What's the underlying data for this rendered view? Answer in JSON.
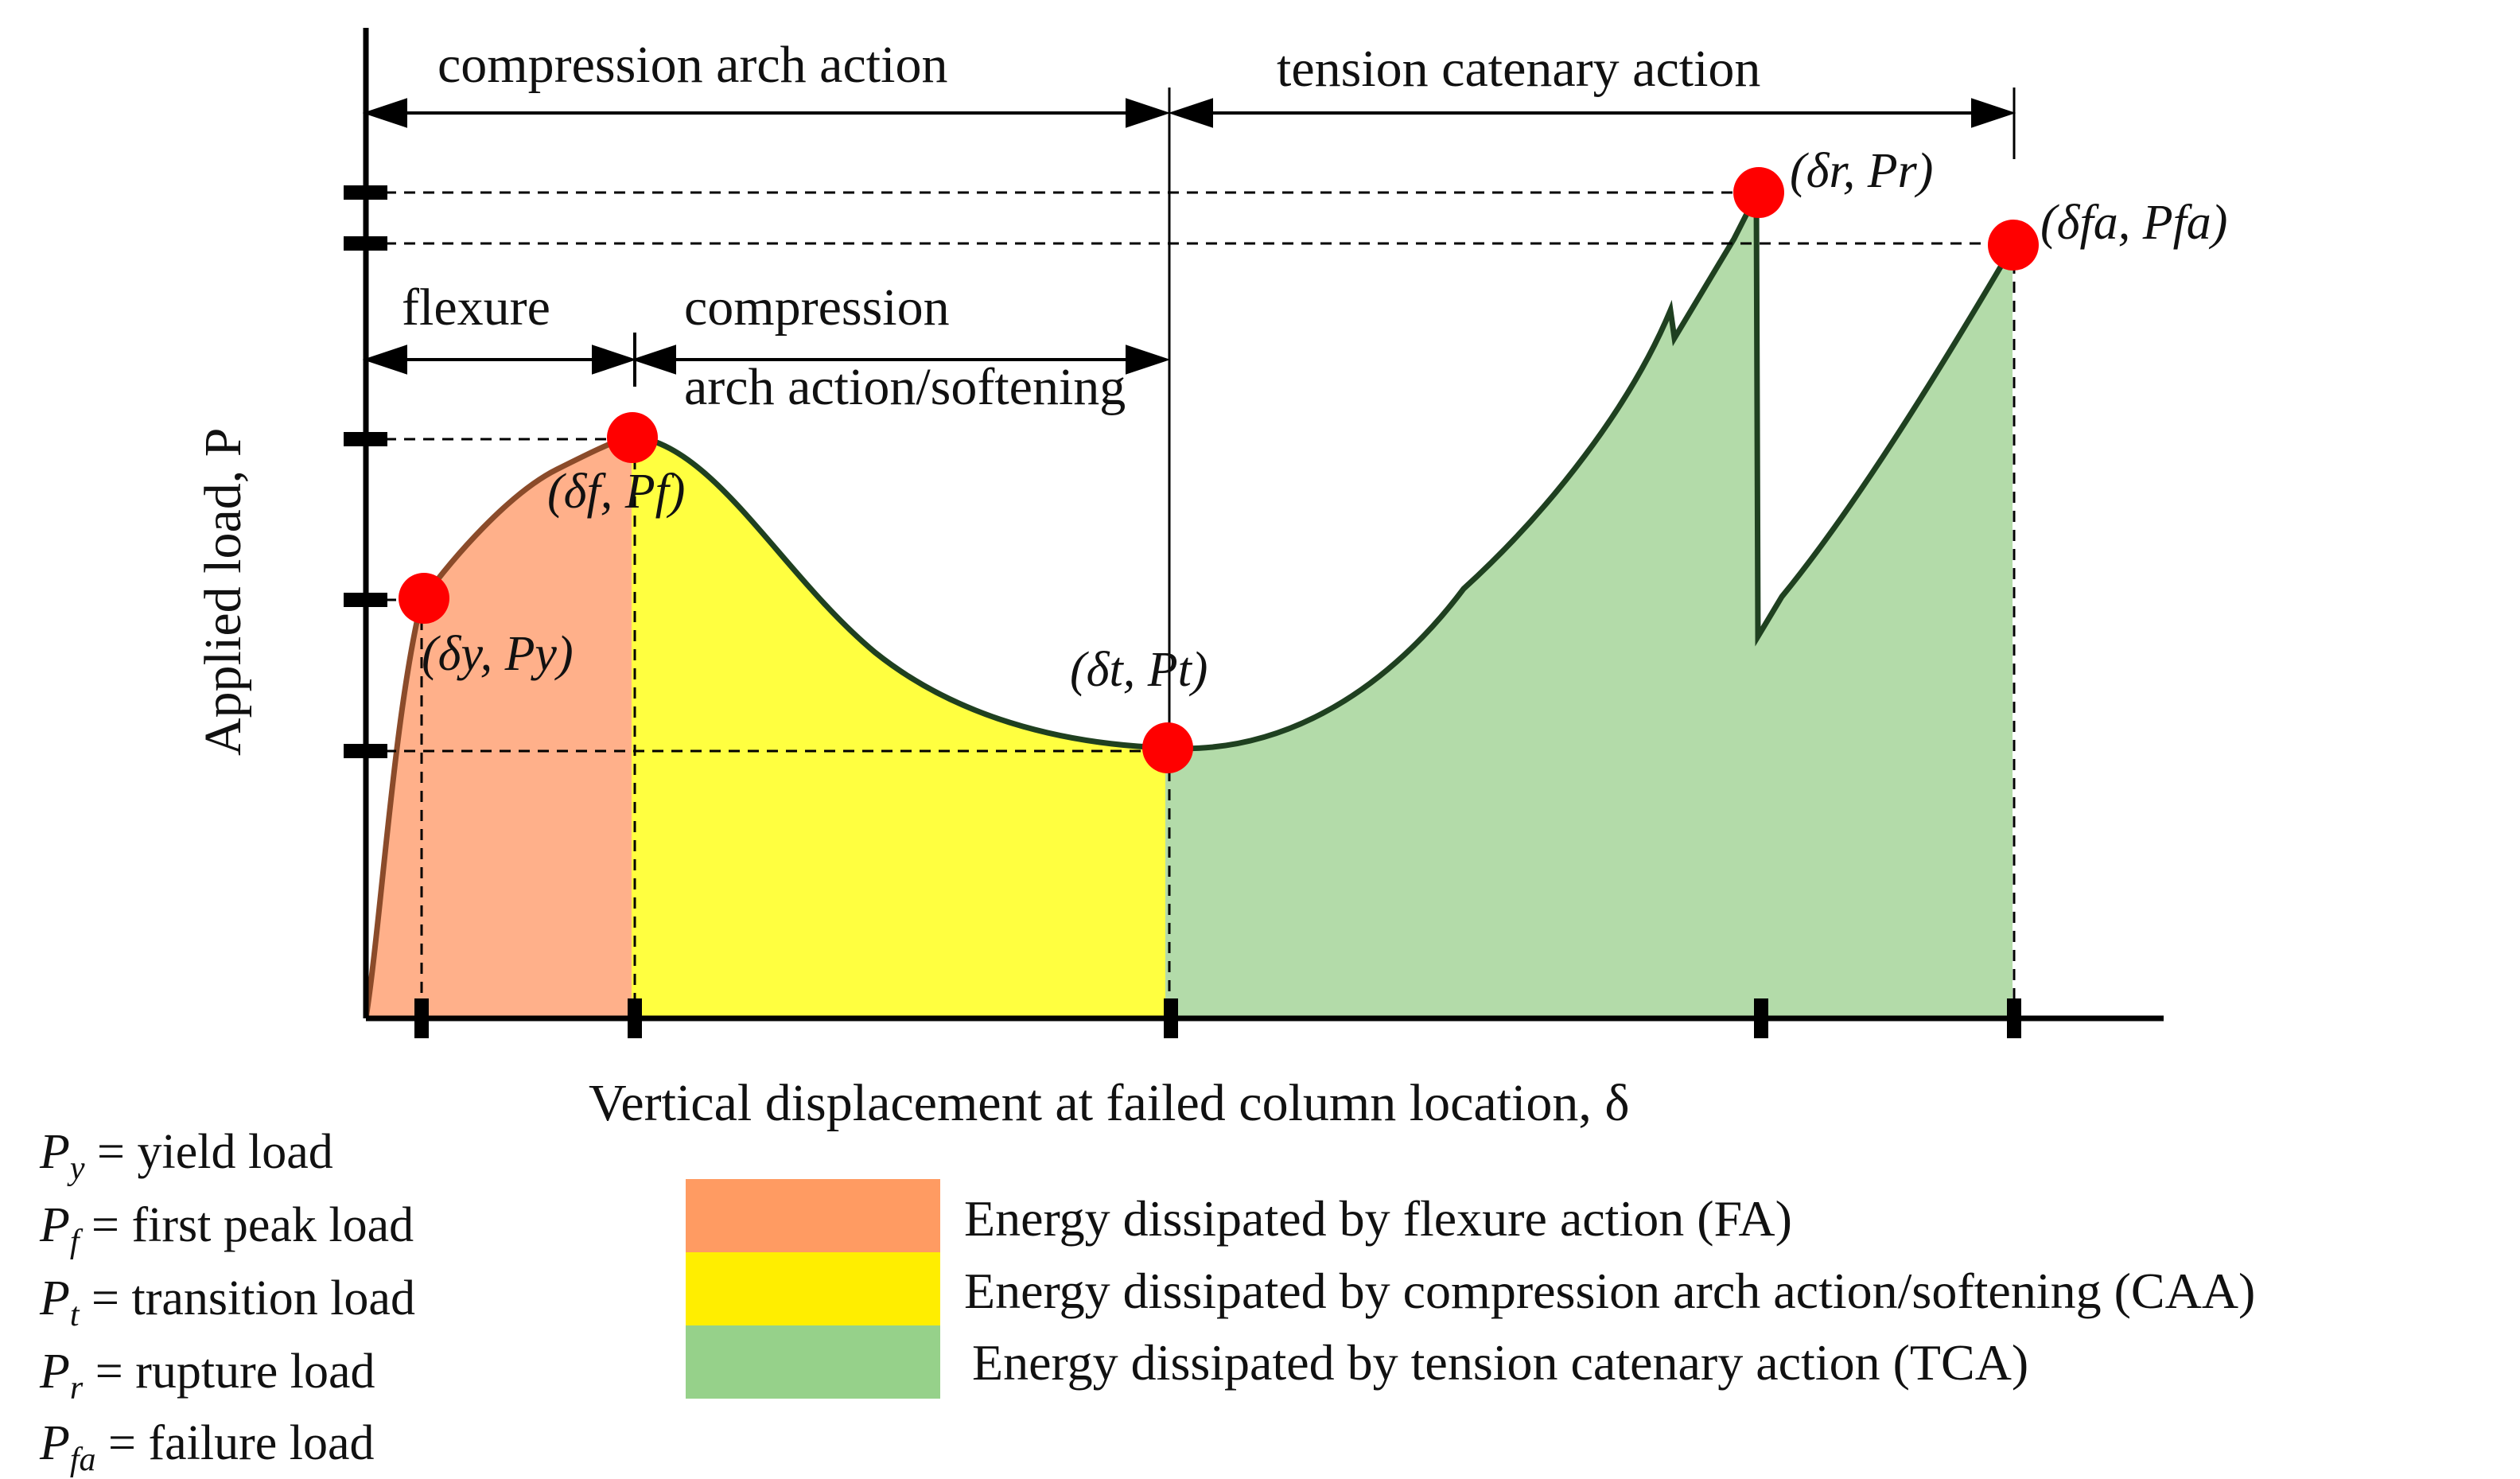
{
  "figure": {
    "y_axis_title": "Applied load, P",
    "x_axis_title": "Vertical displacement at failed column location, δ",
    "phases_top": [
      {
        "label": "compression arch action"
      },
      {
        "label": "tension catenary action"
      }
    ],
    "phases_lower": [
      {
        "label": "flexure"
      },
      {
        "label_line1": "compression",
        "label_line2": "arch action/softening"
      }
    ],
    "points": [
      {
        "id": "yield",
        "label": "(δy, Py)"
      },
      {
        "id": "first_peak",
        "label": "(δf, Pf)"
      },
      {
        "id": "transition",
        "label": "(δt, Pt)"
      },
      {
        "id": "rupture",
        "label": "(δr, Pr)"
      },
      {
        "id": "failure",
        "label": "(δfa, Pfa)"
      }
    ],
    "colors": {
      "flexure": "#FFB08A",
      "caa": "#FFFF40",
      "tca": "#B3DBA9",
      "point": "#FF0000",
      "curve": "#1F4020",
      "curve_flexure": "#8B4B2A"
    }
  },
  "definitions": [
    {
      "symbol": "Py",
      "sym_main": "P",
      "sym_sub": "y",
      "text": " = yield load"
    },
    {
      "symbol": "Pf",
      "sym_main": "P",
      "sym_sub": "f",
      "text": " = first peak load"
    },
    {
      "symbol": "Pt",
      "sym_main": "P",
      "sym_sub": "t",
      "text": " = transition load"
    },
    {
      "symbol": "Pr",
      "sym_main": "P",
      "sym_sub": "r",
      "text": " = rupture load"
    },
    {
      "symbol": "Pfa",
      "sym_main": "P",
      "sym_sub": "fa",
      "text": " = failure load"
    }
  ],
  "legend": [
    {
      "color": "#FF9B62",
      "text": "Energy dissipated by flexure action (FA)"
    },
    {
      "color": "#FFEE00",
      "text": "Energy dissipated by compression arch action/softening (CAA)"
    },
    {
      "color": "#96D18A",
      "text": "Energy dissipated by tension catenary action (TCA)"
    }
  ]
}
